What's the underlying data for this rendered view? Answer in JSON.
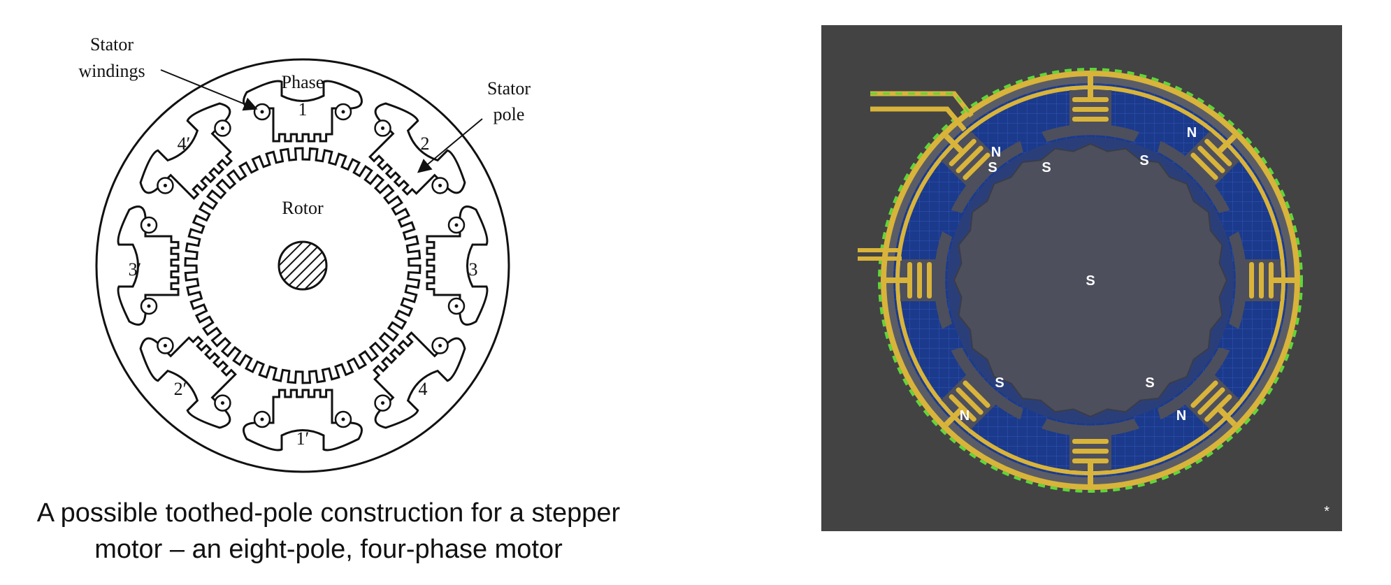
{
  "left": {
    "labels": {
      "stator_windings_line1": "Stator",
      "stator_windings_line2": "windings",
      "stator_pole_line1": "Stator",
      "stator_pole_line2": "pole",
      "phase": "Phase",
      "rotor": "Rotor",
      "phase_1": "1",
      "phase_2": "2",
      "phase_3": "3",
      "phase_4": "4",
      "phase_1p": "1′",
      "phase_2p": "2′",
      "phase_3p": "3′",
      "phase_4p": "4′"
    }
  },
  "caption": {
    "line1": "A possible toothed-pole construction for a stepper",
    "line2": "motor – an eight-pole, four-phase motor"
  },
  "right": {
    "rotor_label": "S",
    "pole_labels": [
      "N",
      "S",
      "N",
      "S",
      "S",
      "N",
      "S",
      "N",
      "S"
    ],
    "footnote": "*",
    "colors": {
      "panel": "#434343",
      "stator_blue": "#1b3a8c",
      "rotor_gray": "#4d4f5c",
      "coil_gold": "#d9b43a",
      "wire_green": "#5fd63a"
    }
  }
}
